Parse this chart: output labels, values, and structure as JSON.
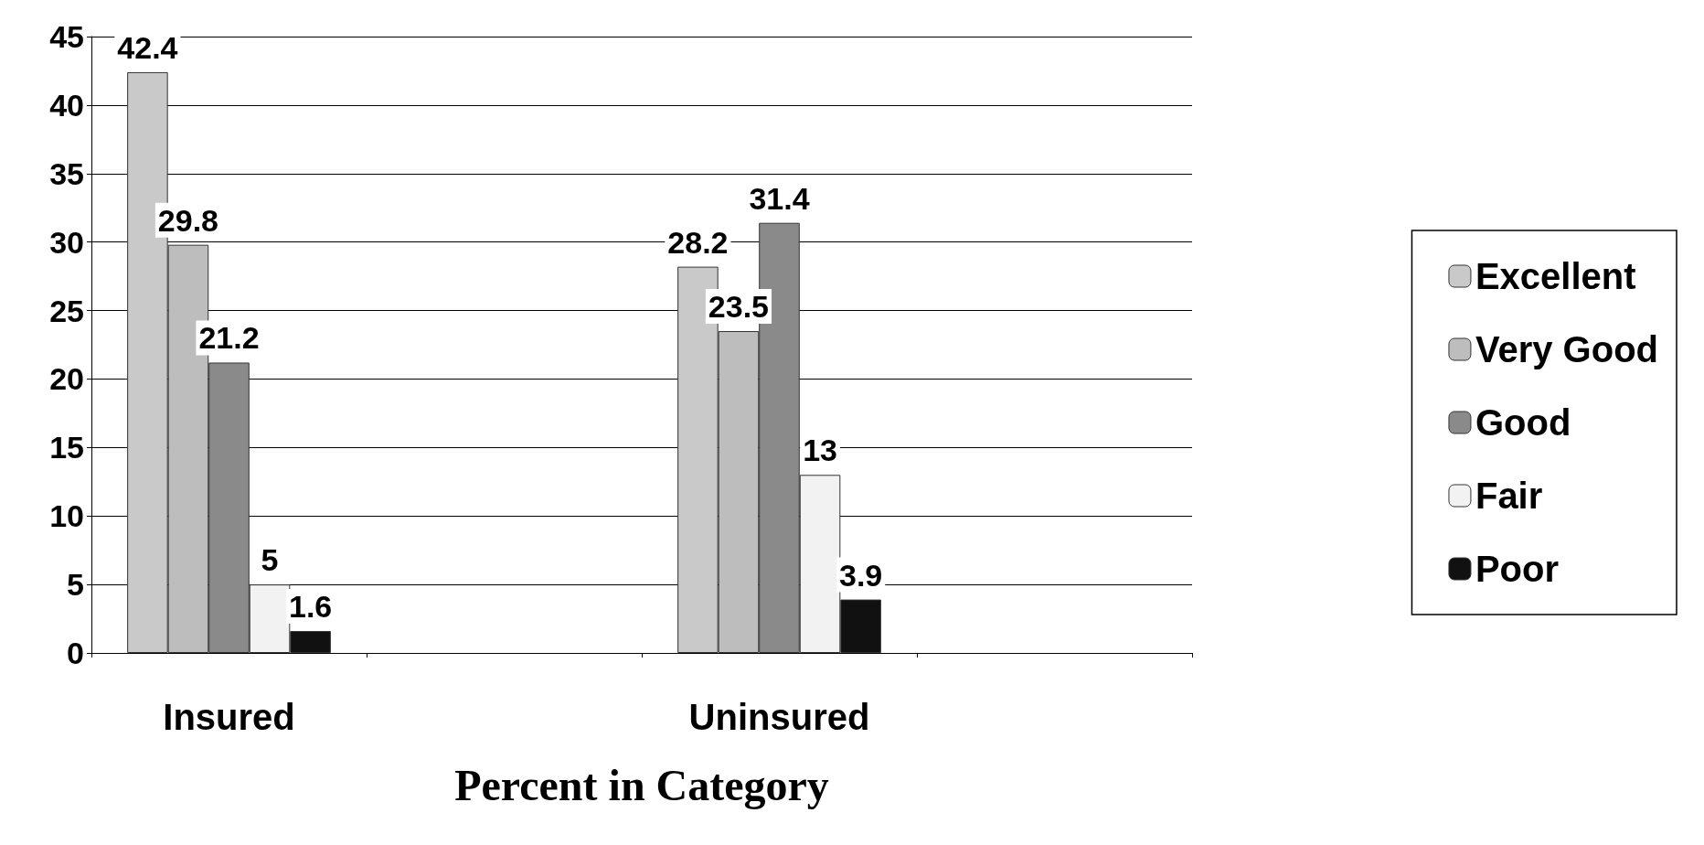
{
  "chart_data": {
    "type": "bar",
    "xlabel": "Percent in Category",
    "categories": [
      "Insured",
      null,
      "Uninsured",
      null
    ],
    "series": [
      {
        "name": "Excellent",
        "color": "#c9c9c9",
        "values": [
          42.4,
          null,
          28.2,
          null
        ]
      },
      {
        "name": "Very Good",
        "color": "#bdbdbd",
        "values": [
          29.8,
          null,
          23.5,
          null
        ]
      },
      {
        "name": "Good",
        "color": "#8a8a8a",
        "values": [
          21.2,
          null,
          31.4,
          null
        ]
      },
      {
        "name": "Fair",
        "color": "#f2f2f2",
        "values": [
          5,
          null,
          13,
          null
        ]
      },
      {
        "name": "Poor",
        "color": "#111111",
        "values": [
          1.6,
          null,
          3.9,
          null
        ]
      }
    ],
    "ylim": [
      0,
      45
    ],
    "yticks": [
      0,
      5,
      10,
      15,
      20,
      25,
      30,
      35,
      40,
      45
    ],
    "grid": "y",
    "legend": "right",
    "data_labels": true
  }
}
